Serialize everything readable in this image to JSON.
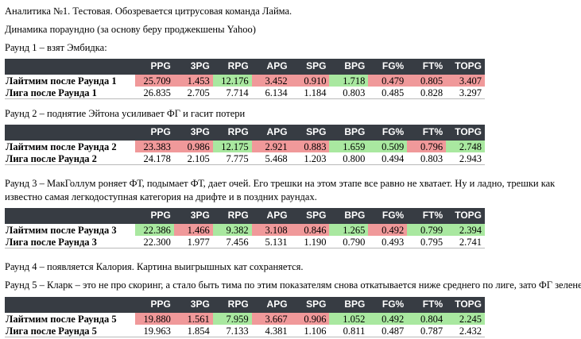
{
  "title": "Аналитика №1. Тестовая. Обозревается цитрусовая команда Лайма.",
  "subtitle": "Динамика пораундно (за основу беру проджекшены Yahoo)",
  "columns": [
    "PPG",
    "3PG",
    "RPG",
    "APG",
    "SPG",
    "BPG",
    "FG%",
    "FT%",
    "TOPG"
  ],
  "colors": {
    "header_bg": "#373c43",
    "red": "#f0999a",
    "green": "#a9e8a0"
  },
  "rounds": [
    {
      "caption": "Раунд 1 – взят Эмбидка:",
      "lime": {
        "label": "Лайтмим после Раунда 1",
        "values": [
          "25.709",
          "1.453",
          "12.176",
          "3.452",
          "0.910",
          "1.718",
          "0.479",
          "0.805",
          "3.407"
        ],
        "colors": [
          "red",
          "red",
          "green",
          "red",
          "red",
          "green",
          "red",
          "red",
          "red"
        ]
      },
      "league": {
        "label": "Лига после Раунда 1",
        "values": [
          "26.835",
          "2.705",
          "7.714",
          "6.134",
          "1.184",
          "0.803",
          "0.485",
          "0.828",
          "3.297"
        ]
      }
    },
    {
      "caption": "Раунд 2 – поднятие Эйтона усиливает ФГ и гасит потери",
      "lime": {
        "label": "Лайтмим после Раунда 2",
        "values": [
          "23.383",
          "0.986",
          "12.175",
          "2.921",
          "0.883",
          "1.659",
          "0.509",
          "0.796",
          "2.748"
        ],
        "colors": [
          "red",
          "red",
          "green",
          "red",
          "red",
          "green",
          "green",
          "red",
          "green"
        ]
      },
      "league": {
        "label": "Лига после Раунда 2",
        "values": [
          "24.178",
          "2.105",
          "7.775",
          "5.468",
          "1.203",
          "0.800",
          "0.494",
          "0.803",
          "2.943"
        ]
      }
    },
    {
      "caption": "Раунд 3 – МакГоллум роняет ФТ, подымает ФТ, дает очей. Его трешки на этом этапе все равно не хватает. Ну и ладно, трешки как известно самая легкодоступная категория на дрифте и в поздних раундах.",
      "lime": {
        "label": "Лайтмим после Раунда 3",
        "values": [
          "22.386",
          "1.466",
          "9.382",
          "3.108",
          "0.846",
          "1.265",
          "0.492",
          "0.799",
          "2.394"
        ],
        "colors": [
          "green",
          "red",
          "green",
          "red",
          "red",
          "green",
          "red",
          "green",
          "green"
        ]
      },
      "league": {
        "label": "Лига после Раунда 3",
        "values": [
          "22.300",
          "1.977",
          "7.456",
          "5.131",
          "1.190",
          "0.790",
          "0.493",
          "0.795",
          "2.741"
        ]
      }
    },
    {
      "caption": "Раунд 5 – Кларк – это не про скоринг, а стало быть тима по этим показателям снова откатывается ниже среднего по лиге, зато ФГ зеленеет",
      "lime": {
        "label": "Лайтмим после Раунда 5",
        "values": [
          "19.880",
          "1.561",
          "7.959",
          "3.667",
          "0.906",
          "1.052",
          "0.492",
          "0.804",
          "2.245"
        ],
        "colors": [
          "red",
          "red",
          "green",
          "red",
          "red",
          "green",
          "green",
          "green",
          "green"
        ]
      },
      "league": {
        "label": "Лига после Раунда 5",
        "values": [
          "19.963",
          "1.854",
          "7.133",
          "4.381",
          "1.106",
          "0.811",
          "0.487",
          "0.787",
          "2.432"
        ]
      }
    }
  ],
  "round4_caption": "Раунд 4 – появляется Калория. Картина выигрышных кат сохраняется."
}
